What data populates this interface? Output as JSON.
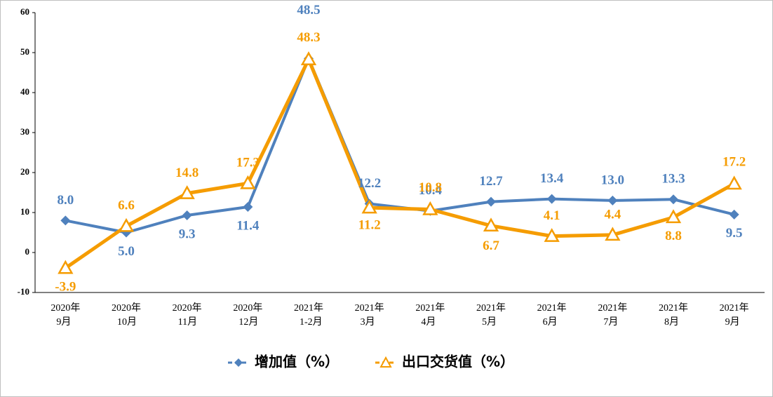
{
  "chart_data": {
    "type": "line",
    "categories": [
      [
        "2020年",
        "9月"
      ],
      [
        "2020年",
        "10月"
      ],
      [
        "2020年",
        "11月"
      ],
      [
        "2020年",
        "12月"
      ],
      [
        "2021年",
        "1-2月"
      ],
      [
        "2021年",
        "3月"
      ],
      [
        "2021年",
        "4月"
      ],
      [
        "2021年",
        "5月"
      ],
      [
        "2021年",
        "6月"
      ],
      [
        "2021年",
        "7月"
      ],
      [
        "2021年",
        "8月"
      ],
      [
        "2021年",
        "9月"
      ]
    ],
    "series": [
      {
        "name": "增加值（%）",
        "color": "#4f81bd",
        "marker": "diamond",
        "values": [
          8.0,
          5.0,
          9.3,
          11.4,
          48.5,
          12.2,
          10.4,
          12.7,
          13.4,
          13.0,
          13.3,
          9.5
        ],
        "value_labels": [
          "8.0",
          "5.0",
          "9.3",
          "11.4",
          "48.5",
          "12.2",
          "10.4",
          "12.7",
          "13.4",
          "13.0",
          "13.3",
          "9.5"
        ]
      },
      {
        "name": "出口交货值（%）",
        "color": "#f59c00",
        "marker": "triangle",
        "values": [
          -3.9,
          6.6,
          14.8,
          17.3,
          48.3,
          11.2,
          10.8,
          6.7,
          4.1,
          4.4,
          8.8,
          17.2
        ],
        "value_labels": [
          "-3.9",
          "6.6",
          "14.8",
          "17.3",
          "48.3",
          "11.2",
          "10.8",
          "6.7",
          "4.1",
          "4.4",
          "8.8",
          "17.2"
        ]
      }
    ],
    "ylim": [
      -10,
      60
    ],
    "yticks": [
      -10,
      0,
      10,
      20,
      30,
      40,
      50,
      60
    ],
    "legend": "bottom"
  }
}
